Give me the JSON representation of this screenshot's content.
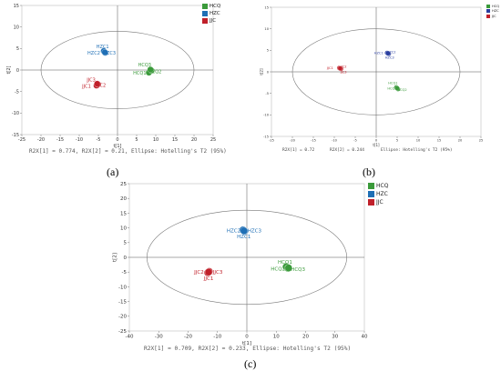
{
  "chart_data": [
    {
      "id": "a",
      "type": "scatter",
      "caption": "(a)",
      "xlabel": "t[1]",
      "ylabel": "t[2]",
      "xlim": [
        -25,
        25
      ],
      "ylim": [
        -15,
        15
      ],
      "xticks": [
        -25,
        -20,
        -15,
        -10,
        -5,
        0,
        5,
        10,
        15,
        20,
        25
      ],
      "yticks": [
        -15,
        -10,
        -5,
        0,
        5,
        10,
        15
      ],
      "ellipse": {
        "rx": 20,
        "ry": 9
      },
      "footer": "R2X[1] = 0.774, R2X[2] = 0.21, Ellipse: Hotelling's T2 (95%)",
      "legend": [
        {
          "name": "HCQ",
          "color": "#3a9a3a"
        },
        {
          "name": "HZC",
          "color": "#1f6fb5"
        },
        {
          "name": "JJC",
          "color": "#c0202a"
        }
      ],
      "series": [
        {
          "name": "HCQ",
          "color": "#3a9a3a",
          "center": [
            8.5,
            -0.3
          ],
          "points": [
            {
              "label": "HCQ1",
              "x": 8.2,
              "y": -0.6
            },
            {
              "label": "HCQ2",
              "x": 8.9,
              "y": -0.1
            },
            {
              "label": "HCQ3",
              "x": 8.6,
              "y": 0.1
            }
          ],
          "labels": [
            {
              "text": "HCQ3",
              "x": 7.1,
              "y": 1.2
            },
            {
              "text": "HCQ1",
              "x": 5.8,
              "y": -0.7
            },
            {
              "text": "HCQ2",
              "x": 9.8,
              "y": -0.4
            }
          ]
        },
        {
          "name": "HZC",
          "color": "#1f6fb5",
          "center": [
            -3.4,
            4.2
          ],
          "points": [
            {
              "label": "HZC1",
              "x": -3.6,
              "y": 4.4
            },
            {
              "label": "HZC2",
              "x": -3.2,
              "y": 4.0
            },
            {
              "label": "HZC3",
              "x": -3.3,
              "y": 4.1
            }
          ],
          "labels": [
            {
              "text": "HZC1",
              "x": -3.9,
              "y": 5.4
            },
            {
              "text": "HZC2",
              "x": -6.2,
              "y": 4.0
            },
            {
              "text": "HZC3",
              "x": -2.1,
              "y": 4.0
            }
          ]
        },
        {
          "name": "JJC",
          "color": "#c0202a",
          "center": [
            -5.3,
            -3.4
          ],
          "points": [
            {
              "label": "JJC1",
              "x": -5.5,
              "y": -3.6
            },
            {
              "label": "JJC2",
              "x": -5.1,
              "y": -3.3
            },
            {
              "label": "JJC3",
              "x": -5.3,
              "y": -3.2
            }
          ],
          "labels": [
            {
              "text": "JJC3",
              "x": -6.9,
              "y": -2.3
            },
            {
              "text": "JJC1",
              "x": -8.1,
              "y": -3.7
            },
            {
              "text": "JJC2",
              "x": -4.2,
              "y": -3.5
            }
          ]
        }
      ]
    },
    {
      "id": "b",
      "type": "scatter",
      "caption": "(b)",
      "xlabel": "t[1]",
      "ylabel": "t[2]",
      "xlim": [
        -25,
        25
      ],
      "ylim": [
        -15,
        15
      ],
      "xticks": [
        -25,
        -20,
        -15,
        -10,
        -5,
        0,
        5,
        10,
        15,
        20,
        25
      ],
      "yticks": [
        -15,
        -10,
        -5,
        0,
        5,
        10,
        15
      ],
      "ellipse": {
        "rx": 20,
        "ry": 10
      },
      "footer_items": [
        "R2X[1] = 0.72",
        "R2X[2] = 0.244",
        "Ellipse: Hotelling's T2 (95%)"
      ],
      "legend": [
        {
          "name": "HCQ",
          "color": "#3a9a3a"
        },
        {
          "name": "HZC",
          "color": "#2a3fa0"
        },
        {
          "name": "JJC",
          "color": "#c0202a"
        }
      ],
      "series": [
        {
          "name": "HCQ",
          "color": "#3a9a3a",
          "center": [
            5.0,
            -3.8
          ],
          "points": [
            {
              "label": "HCQ1",
              "x": 4.8,
              "y": -3.6
            },
            {
              "label": "HCQ2",
              "x": 5.2,
              "y": -4.0
            },
            {
              "label": "HCQ3",
              "x": 5.0,
              "y": -3.8
            }
          ],
          "labels": [
            {
              "text": "HCQ1",
              "x": 4.0,
              "y": -2.6
            },
            {
              "text": "HCQ2",
              "x": 6.2,
              "y": -4.2
            },
            {
              "text": "HCQ3",
              "x": 3.8,
              "y": -3.9
            }
          ]
        },
        {
          "name": "HZC",
          "color": "#2a3fa0",
          "center": [
            2.8,
            4.3
          ],
          "points": [
            {
              "label": "HZC1",
              "x": 2.6,
              "y": 4.4
            },
            {
              "label": "HZC2",
              "x": 3.0,
              "y": 4.2
            },
            {
              "label": "HZC3",
              "x": 2.8,
              "y": 4.3
            }
          ],
          "labels": [
            {
              "text": "HZC1",
              "x": 0.6,
              "y": 4.4
            },
            {
              "text": "HZC2",
              "x": 3.6,
              "y": 4.6
            },
            {
              "text": "HZC3",
              "x": 3.2,
              "y": 3.3
            }
          ]
        },
        {
          "name": "JJC",
          "color": "#c0202a",
          "center": [
            -8.6,
            0.8
          ],
          "points": [
            {
              "label": "JJC1",
              "x": -8.8,
              "y": 0.9
            },
            {
              "label": "JJC2",
              "x": -8.4,
              "y": 0.7
            },
            {
              "label": "JJC3",
              "x": -8.6,
              "y": 0.8
            }
          ],
          "labels": [
            {
              "text": "JJC1",
              "x": -11.0,
              "y": 0.9
            },
            {
              "text": "JJC2",
              "x": -7.8,
              "y": 1.2
            },
            {
              "text": "JJC3",
              "x": -7.8,
              "y": 0.0
            }
          ]
        }
      ]
    },
    {
      "id": "c",
      "type": "scatter",
      "caption": "(c)",
      "xlabel": "t[1]",
      "ylabel": "t[2]",
      "xlim": [
        -40,
        40
      ],
      "ylim": [
        -25,
        25
      ],
      "xticks": [
        -40,
        -30,
        -20,
        -10,
        0,
        10,
        20,
        30,
        40
      ],
      "yticks": [
        -25,
        -20,
        -15,
        -10,
        -5,
        0,
        5,
        10,
        15,
        20,
        25
      ],
      "ellipse": {
        "rx": 34,
        "ry": 16
      },
      "footer": "R2X[1] = 0.709, R2X[2] = 0.233, Ellipse: Hotelling's T2 (95%)",
      "legend": [
        {
          "name": "HCQ",
          "color": "#3a9a3a"
        },
        {
          "name": "HZC",
          "color": "#1f6fb5"
        },
        {
          "name": "JJC",
          "color": "#c0202a"
        }
      ],
      "series": [
        {
          "name": "HCQ",
          "color": "#3a9a3a",
          "center": [
            13.8,
            -3.5
          ],
          "points": [
            {
              "label": "HCQ1",
              "x": 13.4,
              "y": -3.2
            },
            {
              "label": "HCQ2",
              "x": 14.0,
              "y": -3.7
            },
            {
              "label": "HCQ3",
              "x": 14.2,
              "y": -3.6
            }
          ],
          "labels": [
            {
              "text": "HCQ1",
              "x": 13.0,
              "y": -1.6
            },
            {
              "text": "HCQ2",
              "x": 10.6,
              "y": -3.9
            },
            {
              "text": "HCQ3",
              "x": 17.4,
              "y": -4.0
            }
          ]
        },
        {
          "name": "HZC",
          "color": "#1f6fb5",
          "center": [
            -1.0,
            9.1
          ],
          "points": [
            {
              "label": "HZC1",
              "x": -1.3,
              "y": 9.3
            },
            {
              "label": "HZC2",
              "x": -0.8,
              "y": 8.9
            },
            {
              "label": "HZC3",
              "x": -1.0,
              "y": 9.0
            }
          ],
          "labels": [
            {
              "text": "HZC2",
              "x": -4.5,
              "y": 9.1
            },
            {
              "text": "HZC3",
              "x": 2.6,
              "y": 9.1
            },
            {
              "text": "HZC1",
              "x": -1.0,
              "y": 7.1
            }
          ]
        },
        {
          "name": "JJC",
          "color": "#c0202a",
          "center": [
            -13.0,
            -5.0
          ],
          "points": [
            {
              "label": "JJC1",
              "x": -13.3,
              "y": -5.2
            },
            {
              "label": "JJC2",
              "x": -12.8,
              "y": -4.8
            },
            {
              "label": "JJC3",
              "x": -13.0,
              "y": -5.0
            }
          ],
          "labels": [
            {
              "text": "JJC2",
              "x": -16.3,
              "y": -5.0
            },
            {
              "text": "JJC3",
              "x": -9.9,
              "y": -4.9
            },
            {
              "text": "JJC1",
              "x": -13.0,
              "y": -7.1
            }
          ]
        }
      ]
    }
  ]
}
